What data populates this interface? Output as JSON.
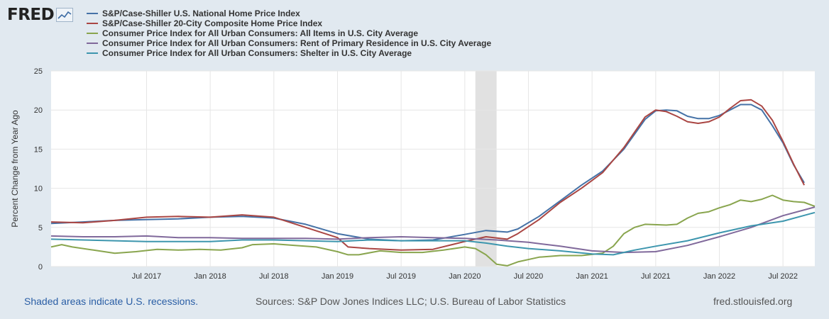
{
  "brand": {
    "logo_text": "FRED",
    "logo_icon": "line-chart-icon"
  },
  "colors": {
    "background": "#e1e9f0",
    "plot_background": "#ffffff",
    "grid": "#e6e6e6",
    "recession_shade": "#e1e1e1",
    "footer_link": "#2a5ea5"
  },
  "footer": {
    "recessions_note": "Shaded areas indicate U.S. recessions.",
    "sources": "Sources: S&P Dow Jones Indices LLC; U.S. Bureau of Labor Statistics",
    "site": "fred.stlouisfed.org"
  },
  "chart_data": {
    "type": "line",
    "title": "",
    "xlabel": "",
    "ylabel": "Percent Change from Year Ago",
    "ylim": [
      0,
      25
    ],
    "yticks": [
      0,
      5,
      10,
      15,
      20,
      25
    ],
    "grid": true,
    "legend_position": "top",
    "x_start": "2016-10",
    "x_end": "2022-10",
    "xticks": [
      {
        "label": "Jul 2017",
        "month_index": 9
      },
      {
        "label": "Jan 2018",
        "month_index": 15
      },
      {
        "label": "Jul 2018",
        "month_index": 21
      },
      {
        "label": "Jan 2019",
        "month_index": 27
      },
      {
        "label": "Jul 2019",
        "month_index": 33
      },
      {
        "label": "Jan 2020",
        "month_index": 39
      },
      {
        "label": "Jul 2020",
        "month_index": 45
      },
      {
        "label": "Jan 2021",
        "month_index": 51
      },
      {
        "label": "Jul 2021",
        "month_index": 57
      },
      {
        "label": "Jan 2022",
        "month_index": 63
      },
      {
        "label": "Jul 2022",
        "month_index": 69
      }
    ],
    "recessions": [
      {
        "start_month_index": 40,
        "end_month_index": 42
      }
    ],
    "series": [
      {
        "name": "S&P/Case-Shiller U.S. National Home Price Index",
        "color": "#4572a7",
        "values": [
          {
            "m": 0,
            "v": 5.5
          },
          {
            "m": 3,
            "v": 5.7
          },
          {
            "m": 6,
            "v": 5.9
          },
          {
            "m": 9,
            "v": 6.0
          },
          {
            "m": 12,
            "v": 6.1
          },
          {
            "m": 15,
            "v": 6.3
          },
          {
            "m": 18,
            "v": 6.4
          },
          {
            "m": 21,
            "v": 6.2
          },
          {
            "m": 24,
            "v": 5.4
          },
          {
            "m": 27,
            "v": 4.2
          },
          {
            "m": 30,
            "v": 3.5
          },
          {
            "m": 33,
            "v": 3.3
          },
          {
            "m": 36,
            "v": 3.4
          },
          {
            "m": 39,
            "v": 4.1
          },
          {
            "m": 41,
            "v": 4.6
          },
          {
            "m": 43,
            "v": 4.4
          },
          {
            "m": 44,
            "v": 4.8
          },
          {
            "m": 46,
            "v": 6.4
          },
          {
            "m": 48,
            "v": 8.4
          },
          {
            "m": 50,
            "v": 10.4
          },
          {
            "m": 52,
            "v": 12.2
          },
          {
            "m": 54,
            "v": 15.0
          },
          {
            "m": 56,
            "v": 18.8
          },
          {
            "m": 57,
            "v": 19.9
          },
          {
            "m": 58,
            "v": 20.0
          },
          {
            "m": 59,
            "v": 19.9
          },
          {
            "m": 60,
            "v": 19.2
          },
          {
            "m": 61,
            "v": 18.9
          },
          {
            "m": 62,
            "v": 18.9
          },
          {
            "m": 63,
            "v": 19.3
          },
          {
            "m": 64,
            "v": 20.0
          },
          {
            "m": 65,
            "v": 20.7
          },
          {
            "m": 66,
            "v": 20.7
          },
          {
            "m": 67,
            "v": 20.0
          },
          {
            "m": 68,
            "v": 18.0
          },
          {
            "m": 69,
            "v": 15.8
          },
          {
            "m": 70,
            "v": 13.0
          },
          {
            "m": 71,
            "v": 10.7
          }
        ]
      },
      {
        "name": "S&P/Case-Shiller 20-City Composite Home Price Index",
        "color": "#aa4643",
        "values": [
          {
            "m": 0,
            "v": 5.7
          },
          {
            "m": 3,
            "v": 5.6
          },
          {
            "m": 6,
            "v": 5.9
          },
          {
            "m": 9,
            "v": 6.3
          },
          {
            "m": 12,
            "v": 6.4
          },
          {
            "m": 15,
            "v": 6.3
          },
          {
            "m": 18,
            "v": 6.6
          },
          {
            "m": 21,
            "v": 6.3
          },
          {
            "m": 24,
            "v": 5.0
          },
          {
            "m": 27,
            "v": 3.7
          },
          {
            "m": 28,
            "v": 2.5
          },
          {
            "m": 30,
            "v": 2.3
          },
          {
            "m": 33,
            "v": 2.1
          },
          {
            "m": 36,
            "v": 2.2
          },
          {
            "m": 39,
            "v": 3.2
          },
          {
            "m": 41,
            "v": 3.8
          },
          {
            "m": 43,
            "v": 3.5
          },
          {
            "m": 44,
            "v": 4.2
          },
          {
            "m": 46,
            "v": 6.0
          },
          {
            "m": 48,
            "v": 8.2
          },
          {
            "m": 50,
            "v": 10.0
          },
          {
            "m": 52,
            "v": 12.0
          },
          {
            "m": 54,
            "v": 15.2
          },
          {
            "m": 56,
            "v": 19.1
          },
          {
            "m": 57,
            "v": 20.0
          },
          {
            "m": 58,
            "v": 19.8
          },
          {
            "m": 59,
            "v": 19.2
          },
          {
            "m": 60,
            "v": 18.5
          },
          {
            "m": 61,
            "v": 18.3
          },
          {
            "m": 62,
            "v": 18.5
          },
          {
            "m": 63,
            "v": 19.1
          },
          {
            "m": 64,
            "v": 20.2
          },
          {
            "m": 65,
            "v": 21.2
          },
          {
            "m": 66,
            "v": 21.3
          },
          {
            "m": 67,
            "v": 20.5
          },
          {
            "m": 68,
            "v": 18.7
          },
          {
            "m": 69,
            "v": 16.0
          },
          {
            "m": 70,
            "v": 13.1
          },
          {
            "m": 71,
            "v": 10.4
          }
        ]
      },
      {
        "name": "Consumer Price Index for All Urban Consumers: All Items in U.S. City Average",
        "color": "#89a54e",
        "values": [
          {
            "m": 0,
            "v": 2.5
          },
          {
            "m": 1,
            "v": 2.8
          },
          {
            "m": 2,
            "v": 2.5
          },
          {
            "m": 4,
            "v": 2.1
          },
          {
            "m": 6,
            "v": 1.7
          },
          {
            "m": 8,
            "v": 1.9
          },
          {
            "m": 10,
            "v": 2.2
          },
          {
            "m": 12,
            "v": 2.1
          },
          {
            "m": 14,
            "v": 2.2
          },
          {
            "m": 16,
            "v": 2.1
          },
          {
            "m": 18,
            "v": 2.4
          },
          {
            "m": 19,
            "v": 2.8
          },
          {
            "m": 21,
            "v": 2.9
          },
          {
            "m": 23,
            "v": 2.7
          },
          {
            "m": 25,
            "v": 2.5
          },
          {
            "m": 27,
            "v": 1.9
          },
          {
            "m": 28,
            "v": 1.5
          },
          {
            "m": 29,
            "v": 1.5
          },
          {
            "m": 31,
            "v": 2.0
          },
          {
            "m": 33,
            "v": 1.8
          },
          {
            "m": 35,
            "v": 1.8
          },
          {
            "m": 37,
            "v": 2.1
          },
          {
            "m": 39,
            "v": 2.5
          },
          {
            "m": 40,
            "v": 2.3
          },
          {
            "m": 41,
            "v": 1.5
          },
          {
            "m": 42,
            "v": 0.3
          },
          {
            "m": 43,
            "v": 0.1
          },
          {
            "m": 44,
            "v": 0.6
          },
          {
            "m": 46,
            "v": 1.2
          },
          {
            "m": 48,
            "v": 1.4
          },
          {
            "m": 50,
            "v": 1.4
          },
          {
            "m": 52,
            "v": 1.7
          },
          {
            "m": 53,
            "v": 2.6
          },
          {
            "m": 54,
            "v": 4.2
          },
          {
            "m": 55,
            "v": 5.0
          },
          {
            "m": 56,
            "v": 5.4
          },
          {
            "m": 58,
            "v": 5.3
          },
          {
            "m": 59,
            "v": 5.4
          },
          {
            "m": 60,
            "v": 6.2
          },
          {
            "m": 61,
            "v": 6.8
          },
          {
            "m": 62,
            "v": 7.0
          },
          {
            "m": 63,
            "v": 7.5
          },
          {
            "m": 64,
            "v": 7.9
          },
          {
            "m": 65,
            "v": 8.5
          },
          {
            "m": 66,
            "v": 8.3
          },
          {
            "m": 67,
            "v": 8.6
          },
          {
            "m": 68,
            "v": 9.1
          },
          {
            "m": 69,
            "v": 8.5
          },
          {
            "m": 70,
            "v": 8.3
          },
          {
            "m": 71,
            "v": 8.2
          },
          {
            "m": 72,
            "v": 7.7
          }
        ]
      },
      {
        "name": "Consumer Price Index for All Urban Consumers: Rent of Primary Residence in U.S. City Average",
        "color": "#80699b",
        "values": [
          {
            "m": 0,
            "v": 3.9
          },
          {
            "m": 3,
            "v": 3.8
          },
          {
            "m": 6,
            "v": 3.8
          },
          {
            "m": 9,
            "v": 3.9
          },
          {
            "m": 12,
            "v": 3.7
          },
          {
            "m": 15,
            "v": 3.7
          },
          {
            "m": 18,
            "v": 3.6
          },
          {
            "m": 21,
            "v": 3.6
          },
          {
            "m": 24,
            "v": 3.6
          },
          {
            "m": 27,
            "v": 3.5
          },
          {
            "m": 30,
            "v": 3.7
          },
          {
            "m": 33,
            "v": 3.8
          },
          {
            "m": 36,
            "v": 3.7
          },
          {
            "m": 39,
            "v": 3.6
          },
          {
            "m": 42,
            "v": 3.4
          },
          {
            "m": 45,
            "v": 3.1
          },
          {
            "m": 48,
            "v": 2.6
          },
          {
            "m": 51,
            "v": 2.0
          },
          {
            "m": 54,
            "v": 1.8
          },
          {
            "m": 57,
            "v": 1.9
          },
          {
            "m": 60,
            "v": 2.7
          },
          {
            "m": 63,
            "v": 3.8
          },
          {
            "m": 66,
            "v": 5.0
          },
          {
            "m": 69,
            "v": 6.5
          },
          {
            "m": 72,
            "v": 7.6
          }
        ]
      },
      {
        "name": "Consumer Price Index for All Urban Consumers: Shelter in U.S. City Average",
        "color": "#3d96ae",
        "values": [
          {
            "m": 0,
            "v": 3.5
          },
          {
            "m": 3,
            "v": 3.4
          },
          {
            "m": 6,
            "v": 3.3
          },
          {
            "m": 9,
            "v": 3.2
          },
          {
            "m": 12,
            "v": 3.2
          },
          {
            "m": 15,
            "v": 3.2
          },
          {
            "m": 18,
            "v": 3.4
          },
          {
            "m": 21,
            "v": 3.4
          },
          {
            "m": 24,
            "v": 3.3
          },
          {
            "m": 27,
            "v": 3.2
          },
          {
            "m": 30,
            "v": 3.4
          },
          {
            "m": 33,
            "v": 3.3
          },
          {
            "m": 36,
            "v": 3.3
          },
          {
            "m": 39,
            "v": 3.3
          },
          {
            "m": 41,
            "v": 3.0
          },
          {
            "m": 43,
            "v": 2.6
          },
          {
            "m": 45,
            "v": 2.3
          },
          {
            "m": 48,
            "v": 2.0
          },
          {
            "m": 51,
            "v": 1.6
          },
          {
            "m": 53,
            "v": 1.5
          },
          {
            "m": 55,
            "v": 2.1
          },
          {
            "m": 57,
            "v": 2.6
          },
          {
            "m": 60,
            "v": 3.3
          },
          {
            "m": 63,
            "v": 4.3
          },
          {
            "m": 66,
            "v": 5.2
          },
          {
            "m": 69,
            "v": 5.8
          },
          {
            "m": 72,
            "v": 6.9
          }
        ]
      }
    ]
  }
}
